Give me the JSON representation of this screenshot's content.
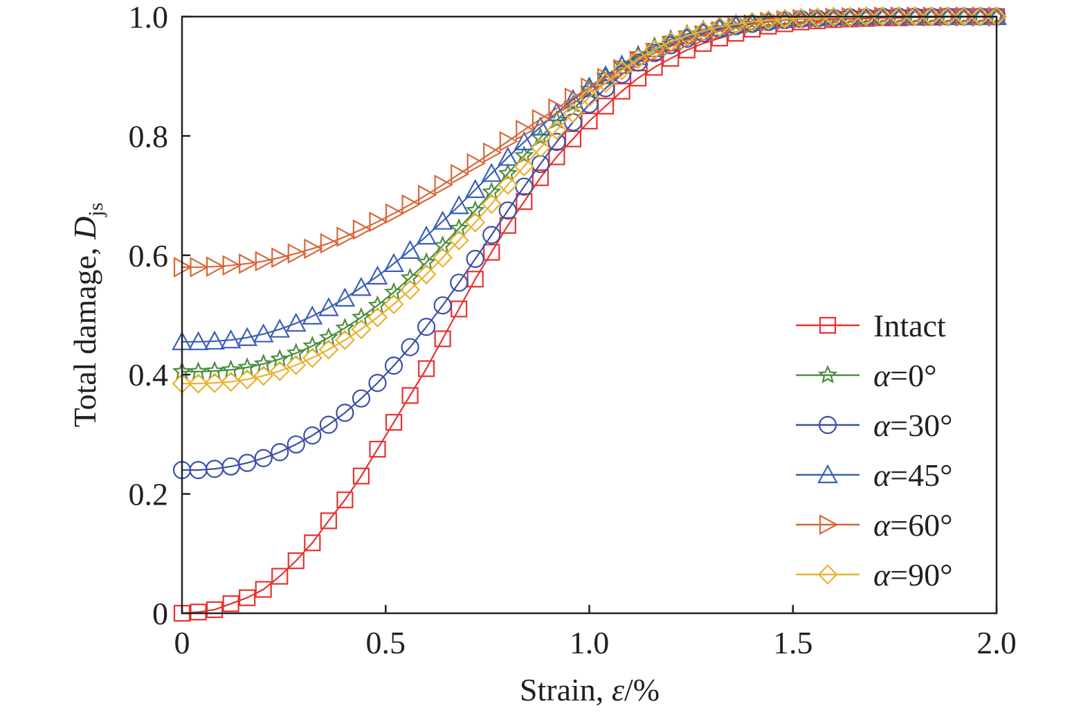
{
  "chart_data": {
    "type": "line",
    "title": "",
    "xlabel": {
      "prefix": "Strain, ",
      "symbol": "ε",
      "suffix": "/%"
    },
    "ylabel": {
      "prefix": "Total damage, ",
      "symbol": "D",
      "subscript": "js"
    },
    "xlim": [
      0,
      2.0
    ],
    "ylim": [
      0,
      1.0
    ],
    "x_ticks": [
      0,
      0.5,
      1.0,
      1.5,
      2.0
    ],
    "x_tick_labels": [
      "0",
      "0.5",
      "1.0",
      "1.5",
      "2.0"
    ],
    "y_ticks": [
      0,
      0.2,
      0.4,
      0.6,
      0.8,
      1.0
    ],
    "y_tick_labels": [
      "0",
      "0.2",
      "0.4",
      "0.6",
      "0.8",
      "1.0"
    ],
    "grid": false,
    "legend_position": "lower-right",
    "x": [
      0,
      0.04,
      0.08,
      0.12,
      0.16,
      0.2,
      0.24,
      0.28,
      0.32,
      0.36,
      0.4,
      0.44,
      0.48,
      0.52,
      0.56,
      0.6,
      0.64,
      0.68,
      0.72,
      0.76,
      0.8,
      0.84,
      0.88,
      0.92,
      0.96,
      1.0,
      1.04,
      1.08,
      1.12,
      1.16,
      1.2,
      1.24,
      1.28,
      1.32,
      1.36,
      1.4,
      1.44,
      1.48,
      1.52,
      1.56,
      1.6,
      1.64,
      1.68,
      1.72,
      1.76,
      1.8,
      1.84,
      1.88,
      1.92,
      1.96,
      2.0
    ],
    "series": [
      {
        "name": "Intact",
        "marker": "square",
        "color": "#e8312f",
        "values": [
          0.0,
          0.002,
          0.006,
          0.016,
          0.026,
          0.04,
          0.062,
          0.088,
          0.118,
          0.155,
          0.19,
          0.23,
          0.275,
          0.32,
          0.365,
          0.41,
          0.46,
          0.51,
          0.56,
          0.605,
          0.65,
          0.69,
          0.73,
          0.765,
          0.795,
          0.825,
          0.85,
          0.875,
          0.897,
          0.915,
          0.93,
          0.944,
          0.955,
          0.964,
          0.972,
          0.979,
          0.984,
          0.988,
          0.991,
          0.993,
          0.995,
          0.996,
          0.997,
          0.998,
          0.998,
          0.999,
          0.999,
          1.0,
          1.0,
          1.0,
          1.0
        ]
      },
      {
        "name": "α=0°",
        "marker": "star",
        "color": "#4a8c3f",
        "values": [
          0.405,
          0.405,
          0.406,
          0.408,
          0.412,
          0.418,
          0.426,
          0.436,
          0.448,
          0.462,
          0.478,
          0.496,
          0.516,
          0.538,
          0.562,
          0.588,
          0.616,
          0.645,
          0.675,
          0.706,
          0.737,
          0.767,
          0.797,
          0.826,
          0.853,
          0.878,
          0.9,
          0.92,
          0.936,
          0.95,
          0.962,
          0.971,
          0.978,
          0.984,
          0.988,
          0.991,
          0.994,
          0.996,
          0.997,
          0.998,
          0.999,
          0.999,
          1.0,
          1.0,
          1.0,
          1.0,
          1.0,
          1.0,
          1.0,
          1.0,
          1.0
        ]
      },
      {
        "name": "α=30°",
        "marker": "circle",
        "color": "#3a4fa8",
        "values": [
          0.24,
          0.24,
          0.242,
          0.246,
          0.252,
          0.26,
          0.27,
          0.283,
          0.298,
          0.316,
          0.336,
          0.36,
          0.386,
          0.415,
          0.446,
          0.48,
          0.516,
          0.554,
          0.594,
          0.634,
          0.675,
          0.715,
          0.753,
          0.79,
          0.823,
          0.853,
          0.88,
          0.903,
          0.923,
          0.939,
          0.952,
          0.963,
          0.972,
          0.979,
          0.984,
          0.988,
          0.991,
          0.994,
          0.996,
          0.997,
          0.998,
          0.999,
          0.999,
          1.0,
          1.0,
          1.0,
          1.0,
          1.0,
          1.0,
          1.0,
          1.0
        ]
      },
      {
        "name": "α=45°",
        "marker": "triangle-up",
        "color": "#3a5fb8",
        "values": [
          0.455,
          0.455,
          0.456,
          0.458,
          0.462,
          0.468,
          0.476,
          0.486,
          0.498,
          0.512,
          0.528,
          0.546,
          0.565,
          0.586,
          0.608,
          0.632,
          0.657,
          0.683,
          0.71,
          0.737,
          0.764,
          0.79,
          0.815,
          0.839,
          0.861,
          0.882,
          0.901,
          0.918,
          0.933,
          0.946,
          0.957,
          0.967,
          0.975,
          0.981,
          0.986,
          0.99,
          0.993,
          0.995,
          0.997,
          0.998,
          0.999,
          0.999,
          1.0,
          1.0,
          1.0,
          1.0,
          1.0,
          1.0,
          1.0,
          1.0,
          1.0
        ]
      },
      {
        "name": "α=60°",
        "marker": "triangle-right",
        "color": "#d9663a",
        "values": [
          0.58,
          0.58,
          0.581,
          0.583,
          0.586,
          0.59,
          0.596,
          0.603,
          0.611,
          0.62,
          0.631,
          0.643,
          0.656,
          0.67,
          0.685,
          0.701,
          0.718,
          0.736,
          0.754,
          0.772,
          0.791,
          0.81,
          0.828,
          0.846,
          0.864,
          0.881,
          0.897,
          0.912,
          0.926,
          0.939,
          0.95,
          0.96,
          0.969,
          0.976,
          0.982,
          0.987,
          0.991,
          0.994,
          0.996,
          0.997,
          0.998,
          0.999,
          0.999,
          1.0,
          1.0,
          1.0,
          1.0,
          1.0,
          1.0,
          1.0,
          1.0
        ]
      },
      {
        "name": "α=90°",
        "marker": "diamond",
        "color": "#eab030",
        "values": [
          0.385,
          0.385,
          0.386,
          0.388,
          0.392,
          0.398,
          0.406,
          0.416,
          0.428,
          0.442,
          0.458,
          0.476,
          0.496,
          0.518,
          0.542,
          0.568,
          0.596,
          0.625,
          0.655,
          0.686,
          0.718,
          0.749,
          0.78,
          0.81,
          0.838,
          0.865,
          0.889,
          0.91,
          0.929,
          0.945,
          0.958,
          0.968,
          0.976,
          0.983,
          0.987,
          0.991,
          0.994,
          0.996,
          0.997,
          0.998,
          0.999,
          0.999,
          1.0,
          1.0,
          1.0,
          1.0,
          1.0,
          1.0,
          1.0,
          1.0,
          1.0
        ]
      }
    ]
  }
}
